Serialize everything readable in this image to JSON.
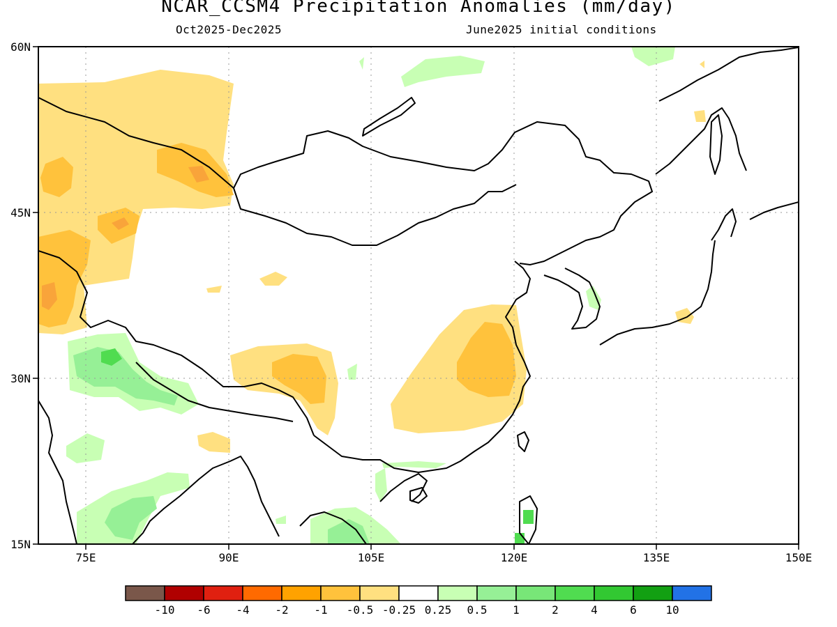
{
  "title": "NCAR_CCSM4 Precipitation Anomalies (mm/day)",
  "subtitle_left": "Oct2025-Dec2025",
  "subtitle_right": "June2025 initial conditions",
  "map": {
    "lon_range": [
      70,
      150
    ],
    "lat_range": [
      15,
      60
    ],
    "x_ticks": [
      {
        "value": 75,
        "label": "75E"
      },
      {
        "value": 90,
        "label": "90E"
      },
      {
        "value": 105,
        "label": "105E"
      },
      {
        "value": 120,
        "label": "120E"
      },
      {
        "value": 135,
        "label": "135E"
      },
      {
        "value": 150,
        "label": "150E"
      }
    ],
    "y_ticks": [
      {
        "value": 60,
        "label": "60N"
      },
      {
        "value": 45,
        "label": "45N"
      },
      {
        "value": 30,
        "label": "30N"
      },
      {
        "value": 15,
        "label": "15N"
      }
    ],
    "gridlines": "dotted"
  },
  "colorbar": {
    "colors": [
      "#7a574a",
      "#b00000",
      "#e02010",
      "#ff6a00",
      "#ffa200",
      "#ffc23c",
      "#ffe080",
      "#ffffff",
      "#c8ffb4",
      "#96f096",
      "#78e678",
      "#50dc50",
      "#32c832",
      "#12a012",
      "#2272e6"
    ],
    "labels": [
      "-10",
      "-6",
      "-4",
      "-2",
      "-1",
      "-0.5",
      "-0.25",
      "0.25",
      "0.5",
      "1",
      "2",
      "4",
      "6",
      "10"
    ]
  }
}
